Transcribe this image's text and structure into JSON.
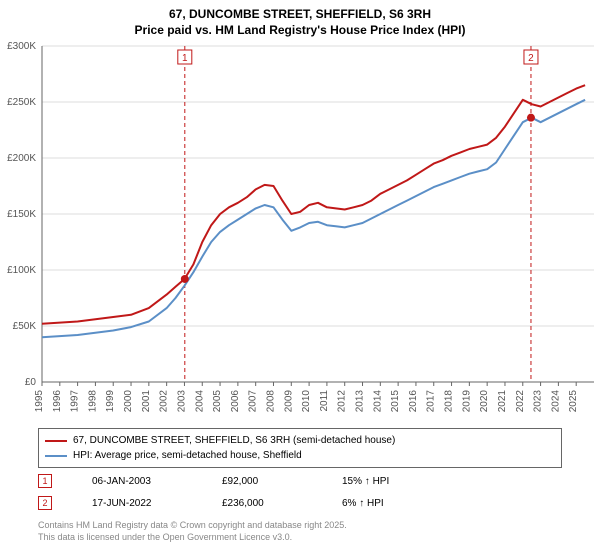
{
  "title_line1": "67, DUNCOMBE STREET, SHEFFIELD, S6 3RH",
  "title_line2": "Price paid vs. HM Land Registry's House Price Index (HPI)",
  "chart": {
    "type": "line",
    "background_color": "#ffffff",
    "gridline_color": "#dddddd",
    "axis_color": "#666666",
    "tick_font_size": 10,
    "tick_color": "#555555",
    "x_years": [
      1995,
      1996,
      1997,
      1998,
      1999,
      2000,
      2001,
      2002,
      2003,
      2004,
      2005,
      2006,
      2007,
      2008,
      2009,
      2010,
      2011,
      2012,
      2013,
      2014,
      2015,
      2016,
      2017,
      2018,
      2019,
      2020,
      2021,
      2022,
      2023,
      2024,
      2025
    ],
    "y_ticks": [
      0,
      50,
      100,
      150,
      200,
      250,
      300
    ],
    "y_tick_labels": [
      "£0",
      "£50K",
      "£100K",
      "£150K",
      "£200K",
      "£250K",
      "£300K"
    ],
    "ylim": [
      0,
      300
    ],
    "xlim": [
      1995,
      2026
    ],
    "series": [
      {
        "name": "price_paid",
        "color": "#c01818",
        "width": 2,
        "values": [
          [
            1995,
            52
          ],
          [
            1996,
            53
          ],
          [
            1997,
            54
          ],
          [
            1998,
            56
          ],
          [
            1999,
            58
          ],
          [
            2000,
            60
          ],
          [
            2001,
            66
          ],
          [
            2002,
            78
          ],
          [
            2002.5,
            85
          ],
          [
            2003,
            92
          ],
          [
            2003.5,
            105
          ],
          [
            2004,
            125
          ],
          [
            2004.5,
            140
          ],
          [
            2005,
            150
          ],
          [
            2005.5,
            156
          ],
          [
            2006,
            160
          ],
          [
            2006.5,
            165
          ],
          [
            2007,
            172
          ],
          [
            2007.5,
            176
          ],
          [
            2008,
            175
          ],
          [
            2008.5,
            162
          ],
          [
            2009,
            150
          ],
          [
            2009.5,
            152
          ],
          [
            2010,
            158
          ],
          [
            2010.5,
            160
          ],
          [
            2011,
            156
          ],
          [
            2011.5,
            155
          ],
          [
            2012,
            154
          ],
          [
            2012.5,
            156
          ],
          [
            2013,
            158
          ],
          [
            2013.5,
            162
          ],
          [
            2014,
            168
          ],
          [
            2014.5,
            172
          ],
          [
            2015,
            176
          ],
          [
            2015.5,
            180
          ],
          [
            2016,
            185
          ],
          [
            2016.5,
            190
          ],
          [
            2017,
            195
          ],
          [
            2017.5,
            198
          ],
          [
            2018,
            202
          ],
          [
            2018.5,
            205
          ],
          [
            2019,
            208
          ],
          [
            2019.5,
            210
          ],
          [
            2020,
            212
          ],
          [
            2020.5,
            218
          ],
          [
            2021,
            228
          ],
          [
            2021.5,
            240
          ],
          [
            2022,
            252
          ],
          [
            2022.5,
            248
          ],
          [
            2023,
            246
          ],
          [
            2023.5,
            250
          ],
          [
            2024,
            254
          ],
          [
            2024.5,
            258
          ],
          [
            2025,
            262
          ],
          [
            2025.5,
            265
          ]
        ]
      },
      {
        "name": "hpi",
        "color": "#5b8fc7",
        "width": 2,
        "values": [
          [
            1995,
            40
          ],
          [
            1996,
            41
          ],
          [
            1997,
            42
          ],
          [
            1998,
            44
          ],
          [
            1999,
            46
          ],
          [
            2000,
            49
          ],
          [
            2001,
            54
          ],
          [
            2002,
            66
          ],
          [
            2002.5,
            75
          ],
          [
            2003,
            86
          ],
          [
            2003.5,
            98
          ],
          [
            2004,
            112
          ],
          [
            2004.5,
            125
          ],
          [
            2005,
            134
          ],
          [
            2005.5,
            140
          ],
          [
            2006,
            145
          ],
          [
            2006.5,
            150
          ],
          [
            2007,
            155
          ],
          [
            2007.5,
            158
          ],
          [
            2008,
            156
          ],
          [
            2008.5,
            145
          ],
          [
            2009,
            135
          ],
          [
            2009.5,
            138
          ],
          [
            2010,
            142
          ],
          [
            2010.5,
            143
          ],
          [
            2011,
            140
          ],
          [
            2011.5,
            139
          ],
          [
            2012,
            138
          ],
          [
            2012.5,
            140
          ],
          [
            2013,
            142
          ],
          [
            2013.5,
            146
          ],
          [
            2014,
            150
          ],
          [
            2014.5,
            154
          ],
          [
            2015,
            158
          ],
          [
            2015.5,
            162
          ],
          [
            2016,
            166
          ],
          [
            2016.5,
            170
          ],
          [
            2017,
            174
          ],
          [
            2017.5,
            177
          ],
          [
            2018,
            180
          ],
          [
            2018.5,
            183
          ],
          [
            2019,
            186
          ],
          [
            2019.5,
            188
          ],
          [
            2020,
            190
          ],
          [
            2020.5,
            196
          ],
          [
            2021,
            208
          ],
          [
            2021.5,
            220
          ],
          [
            2022,
            232
          ],
          [
            2022.5,
            236
          ],
          [
            2023,
            232
          ],
          [
            2023.5,
            236
          ],
          [
            2024,
            240
          ],
          [
            2024.5,
            244
          ],
          [
            2025,
            248
          ],
          [
            2025.5,
            252
          ]
        ]
      }
    ],
    "sale_points": [
      {
        "x": 2003.02,
        "y": 92,
        "color": "#c01818"
      },
      {
        "x": 2022.46,
        "y": 236,
        "color": "#c01818"
      }
    ],
    "marker_lines": [
      {
        "num": "1",
        "x": 2003.02,
        "color": "#c01818"
      },
      {
        "num": "2",
        "x": 2022.46,
        "color": "#c01818"
      }
    ]
  },
  "legend": {
    "items": [
      {
        "color": "#c01818",
        "label": "67, DUNCOMBE STREET, SHEFFIELD, S6 3RH (semi-detached house)"
      },
      {
        "color": "#5b8fc7",
        "label": "HPI: Average price, semi-detached house, Sheffield"
      }
    ]
  },
  "markers_table": [
    {
      "num": "1",
      "color": "#c01818",
      "date": "06-JAN-2003",
      "price": "£92,000",
      "delta": "15% ↑ HPI"
    },
    {
      "num": "2",
      "color": "#c01818",
      "date": "17-JUN-2022",
      "price": "£236,000",
      "delta": "6% ↑ HPI"
    }
  ],
  "attribution_line1": "Contains HM Land Registry data © Crown copyright and database right 2025.",
  "attribution_line2": "This data is licensed under the Open Government Licence v3.0."
}
